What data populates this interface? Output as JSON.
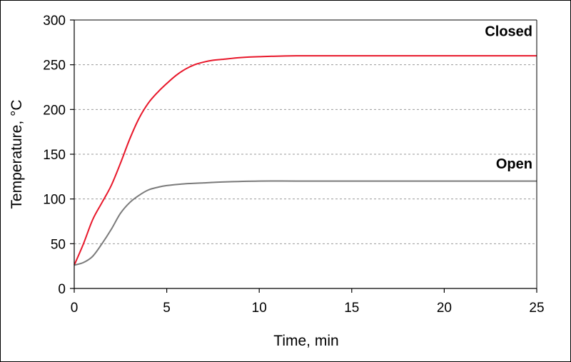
{
  "chart_data": {
    "type": "line",
    "title": "",
    "xlabel": "Time, min",
    "ylabel": "Temperature, °C",
    "xlim": [
      0,
      25
    ],
    "ylim": [
      0,
      300
    ],
    "xticks": [
      0,
      5,
      10,
      15,
      20,
      25
    ],
    "yticks": [
      0,
      50,
      100,
      150,
      200,
      250,
      300
    ],
    "grid": {
      "y": true,
      "x": false,
      "style": "dashed"
    },
    "colors": {
      "Closed": "#e8172a",
      "Open": "#7a7a7a",
      "grid": "#9a9a9a",
      "axis": "#000000"
    },
    "series": [
      {
        "name": "Closed",
        "label_at": [
          25,
          282
        ],
        "x": [
          0,
          0.5,
          1,
          1.5,
          2,
          2.5,
          3,
          3.5,
          4,
          4.5,
          5,
          5.5,
          6,
          6.5,
          7,
          7.5,
          8,
          9,
          10,
          12,
          15,
          20,
          25
        ],
        "y": [
          26,
          50,
          77,
          96,
          115,
          140,
          167,
          190,
          207,
          219,
          229,
          238,
          245,
          250,
          253,
          255,
          256,
          258,
          259,
          260,
          260,
          260,
          260
        ]
      },
      {
        "name": "Open",
        "label_at": [
          25,
          134
        ],
        "x": [
          0,
          0.5,
          1,
          1.5,
          2,
          2.5,
          3,
          3.5,
          4,
          4.5,
          5,
          6,
          7,
          8,
          10,
          12,
          15,
          20,
          25
        ],
        "y": [
          26,
          29,
          36,
          50,
          66,
          84,
          96,
          104,
          110,
          113,
          115,
          117,
          118,
          119,
          120,
          120,
          120,
          120,
          120
        ]
      }
    ]
  }
}
